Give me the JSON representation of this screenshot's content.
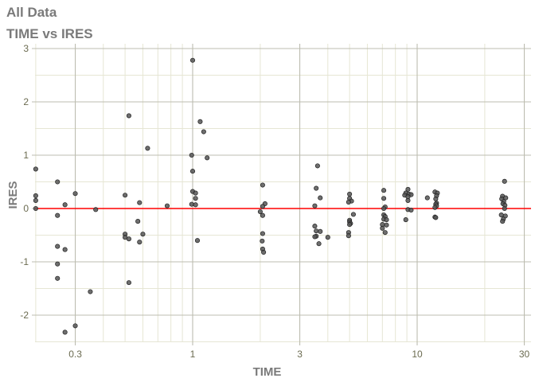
{
  "chart_data": {
    "type": "scatter",
    "title": "All Data",
    "subtitle": "TIME vs IRES",
    "xlabel": "TIME",
    "ylabel": "IRES",
    "xscale": "log",
    "xlim": [
      0.2,
      32
    ],
    "ylim": [
      -2.5,
      3.1
    ],
    "xticks": [
      {
        "v": 0.3,
        "label": "0.3"
      },
      {
        "v": 1,
        "label": "1"
      },
      {
        "v": 3,
        "label": "3"
      },
      {
        "v": 10,
        "label": "10"
      },
      {
        "v": 30,
        "label": "30"
      }
    ],
    "yticks": [
      {
        "v": -2,
        "label": "-2"
      },
      {
        "v": -1,
        "label": "-1"
      },
      {
        "v": 0,
        "label": "0"
      },
      {
        "v": 1,
        "label": "1"
      },
      {
        "v": 2,
        "label": "2"
      },
      {
        "v": 3,
        "label": "3"
      }
    ],
    "grid": true,
    "reference_line": {
      "y": 0,
      "color": "#ff0000"
    },
    "point_color": "#555555",
    "points": [
      [
        1,
        2.78
      ],
      [
        0.52,
        1.74
      ],
      [
        1.08,
        1.63
      ],
      [
        1.12,
        1.44
      ],
      [
        0.63,
        1.13
      ],
      [
        0.99,
        1.0
      ],
      [
        1.16,
        0.95
      ],
      [
        0.2,
        0.74
      ],
      [
        1,
        0.7
      ],
      [
        0.25,
        0.5
      ],
      [
        0.2,
        0.24
      ],
      [
        0.2,
        0.15
      ],
      [
        0.2,
        0.0
      ],
      [
        0.3,
        0.28
      ],
      [
        0.5,
        0.25
      ],
      [
        1,
        0.32
      ],
      [
        1.03,
        0.29
      ],
      [
        1.03,
        0.19
      ],
      [
        0.99,
        0.08
      ],
      [
        1.03,
        0.07
      ],
      [
        0.27,
        0.07
      ],
      [
        0.58,
        0.11
      ],
      [
        0.77,
        0.05
      ],
      [
        0.37,
        -0.02
      ],
      [
        0.25,
        -0.13
      ],
      [
        0.57,
        -0.24
      ],
      [
        0.5,
        -0.48
      ],
      [
        0.5,
        -0.54
      ],
      [
        0.52,
        -0.57
      ],
      [
        0.6,
        -0.48
      ],
      [
        0.58,
        -0.63
      ],
      [
        1.05,
        -0.6
      ],
      [
        0.25,
        -0.71
      ],
      [
        0.27,
        -0.77
      ],
      [
        0.25,
        -1.04
      ],
      [
        0.25,
        -1.31
      ],
      [
        0.52,
        -1.39
      ],
      [
        0.35,
        -1.56
      ],
      [
        0.3,
        -2.2
      ],
      [
        0.27,
        -2.32
      ],
      [
        2.05,
        0.44
      ],
      [
        2.1,
        0.09
      ],
      [
        2.05,
        0.04
      ],
      [
        2.0,
        -0.06
      ],
      [
        2.05,
        -0.13
      ],
      [
        2.05,
        -0.47
      ],
      [
        2.04,
        -0.61
      ],
      [
        2.05,
        -0.76
      ],
      [
        2.07,
        -0.82
      ],
      [
        3.6,
        0.8
      ],
      [
        3.55,
        0.38
      ],
      [
        3.7,
        0.2
      ],
      [
        3.5,
        0.05
      ],
      [
        3.5,
        -0.33
      ],
      [
        3.55,
        -0.42
      ],
      [
        3.7,
        -0.43
      ],
      [
        3.55,
        -0.52
      ],
      [
        4.0,
        -0.54
      ],
      [
        3.5,
        -0.53
      ],
      [
        3.65,
        -0.66
      ],
      [
        5.0,
        0.27
      ],
      [
        5.0,
        0.19
      ],
      [
        5.1,
        0.14
      ],
      [
        4.95,
        0.12
      ],
      [
        5.2,
        -0.11
      ],
      [
        5.0,
        -0.22
      ],
      [
        5.0,
        -0.25
      ],
      [
        5.05,
        -0.28
      ],
      [
        5.0,
        -0.3
      ],
      [
        4.95,
        -0.45
      ],
      [
        4.95,
        -0.51
      ],
      [
        7.1,
        0.34
      ],
      [
        7.1,
        0.19
      ],
      [
        7.2,
        0.03
      ],
      [
        7.1,
        0.0
      ],
      [
        7.1,
        -0.12
      ],
      [
        7.2,
        -0.15
      ],
      [
        7.1,
        -0.2
      ],
      [
        7.3,
        -0.21
      ],
      [
        7.0,
        -0.3
      ],
      [
        7.3,
        -0.31
      ],
      [
        7.0,
        -0.37
      ],
      [
        7.2,
        -0.45
      ],
      [
        9.1,
        0.36
      ],
      [
        8.9,
        0.29
      ],
      [
        9.2,
        0.27
      ],
      [
        9.4,
        0.26
      ],
      [
        8.8,
        0.25
      ],
      [
        9.1,
        0.22
      ],
      [
        9.1,
        0.15
      ],
      [
        9.1,
        -0.02
      ],
      [
        9.4,
        -0.03
      ],
      [
        8.9,
        -0.21
      ],
      [
        12,
        0.31
      ],
      [
        12.3,
        0.29
      ],
      [
        12.2,
        0.24
      ],
      [
        11.1,
        0.2
      ],
      [
        12.1,
        0.18
      ],
      [
        12.2,
        0.1
      ],
      [
        12.1,
        0.08
      ],
      [
        12.2,
        0.05
      ],
      [
        12,
        0.02
      ],
      [
        12,
        -0.16
      ],
      [
        12.1,
        -0.17
      ],
      [
        24.5,
        0.51
      ],
      [
        24,
        0.23
      ],
      [
        24.8,
        0.2
      ],
      [
        23.8,
        0.18
      ],
      [
        24.3,
        0.13
      ],
      [
        24.1,
        0.09
      ],
      [
        24.6,
        0.06
      ],
      [
        24.5,
        0.0
      ],
      [
        23.7,
        -0.12
      ],
      [
        24.7,
        -0.14
      ],
      [
        24.2,
        -0.2
      ],
      [
        24,
        -0.24
      ]
    ]
  }
}
